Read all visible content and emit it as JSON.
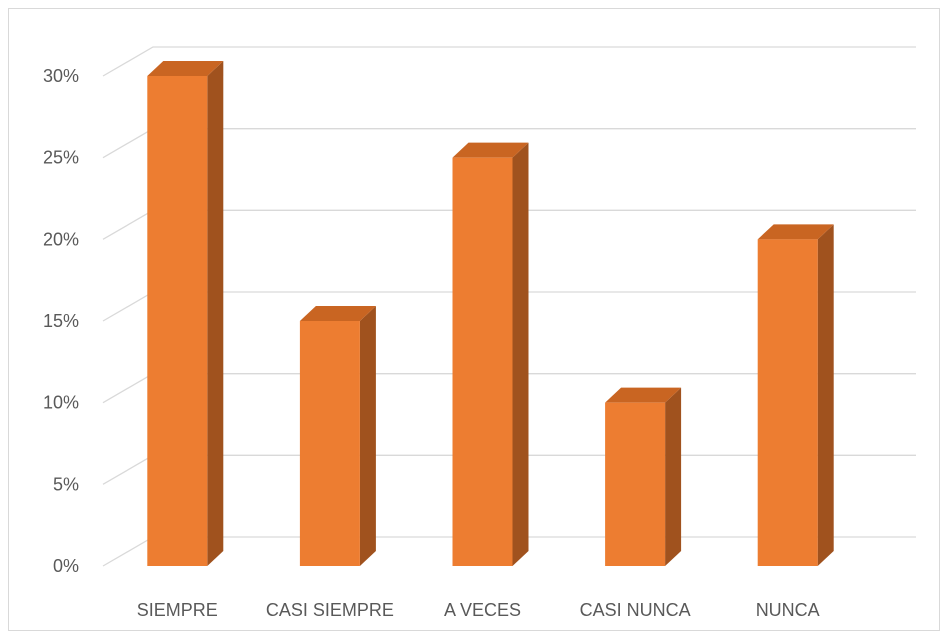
{
  "chart_data": {
    "type": "bar",
    "style": "3d-column",
    "categories": [
      "SIEMPRE",
      "CASI SIEMPRE",
      "A VECES",
      "CASI NUNCA",
      "NUNCA"
    ],
    "values": [
      30,
      15,
      25,
      10,
      20
    ],
    "value_unit": "%",
    "ylim": [
      0,
      30
    ],
    "yticks": [
      "0%",
      "5%",
      "10%",
      "15%",
      "20%",
      "25%",
      "30%"
    ],
    "grid": true,
    "legend": "none",
    "colors": {
      "front": "#ED7D31",
      "side": "#A0521E",
      "top": "#C96522",
      "grid": "#d9d9d9",
      "text": "#595959"
    }
  }
}
